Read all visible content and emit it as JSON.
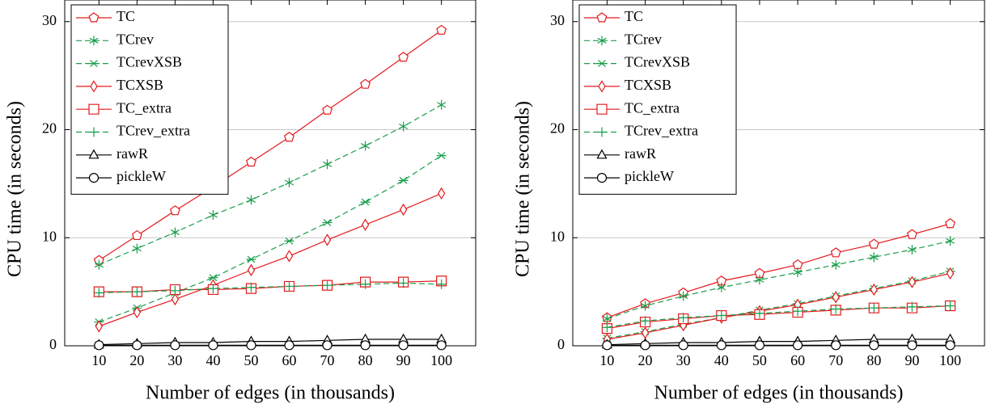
{
  "chart_data": [
    {
      "type": "line",
      "xlabel": "Number of edges (in thousands)",
      "ylabel": "CPU time (in seconds)",
      "x": [
        10,
        20,
        30,
        40,
        50,
        60,
        70,
        80,
        90,
        100
      ],
      "xlim": [
        1,
        109
      ],
      "ylim": [
        0,
        32
      ],
      "xticks": [
        10,
        20,
        30,
        40,
        50,
        60,
        70,
        80,
        90,
        100
      ],
      "yticks": [
        0,
        10,
        20,
        30
      ],
      "grid": true,
      "legend": "upper left",
      "series": [
        {
          "name": "TC",
          "color": "#e41a1c",
          "marker": "pentagon",
          "dash": false,
          "values": [
            7.9,
            10.2,
            12.5,
            14.7,
            17.0,
            19.3,
            21.8,
            24.2,
            26.7,
            29.2
          ]
        },
        {
          "name": "TCrev",
          "color": "#1b9e4b",
          "marker": "asterisk",
          "dash": true,
          "values": [
            7.5,
            9.0,
            10.5,
            12.1,
            13.5,
            15.1,
            16.8,
            18.5,
            20.3,
            22.3
          ]
        },
        {
          "name": "TCrevXSB",
          "color": "#1b9e4b",
          "marker": "star",
          "dash": true,
          "values": [
            2.2,
            3.5,
            4.9,
            6.3,
            8.0,
            9.7,
            11.4,
            13.3,
            15.3,
            17.6
          ]
        },
        {
          "name": "TCXSB",
          "color": "#e41a1c",
          "marker": "diamond",
          "dash": false,
          "values": [
            1.8,
            3.1,
            4.3,
            5.6,
            7.0,
            8.3,
            9.8,
            11.2,
            12.6,
            14.1
          ]
        },
        {
          "name": "TC_extra",
          "color": "#e41a1c",
          "marker": "square",
          "dash": false,
          "values": [
            5.0,
            5.0,
            5.2,
            5.2,
            5.3,
            5.5,
            5.6,
            5.9,
            5.9,
            6.0
          ]
        },
        {
          "name": "TCrev_extra",
          "color": "#1b9e4b",
          "marker": "plus",
          "dash": true,
          "values": [
            4.9,
            5.0,
            5.1,
            5.3,
            5.4,
            5.5,
            5.6,
            5.7,
            5.8,
            5.7
          ]
        },
        {
          "name": "rawR",
          "color": "#000000",
          "marker": "triangle",
          "dash": false,
          "values": [
            0.1,
            0.2,
            0.3,
            0.3,
            0.4,
            0.4,
            0.5,
            0.6,
            0.6,
            0.6
          ]
        },
        {
          "name": "pickleW",
          "color": "#000000",
          "marker": "circle",
          "dash": false,
          "values": [
            0.05,
            0.05,
            0.05,
            0.05,
            0.05,
            0.05,
            0.05,
            0.05,
            0.05,
            0.05
          ]
        }
      ]
    },
    {
      "type": "line",
      "xlabel": "Number of edges (in thousands)",
      "ylabel": "CPU time (in seconds)",
      "x": [
        10,
        20,
        30,
        40,
        50,
        60,
        70,
        80,
        90,
        100
      ],
      "xlim": [
        1,
        109
      ],
      "ylim": [
        0,
        32
      ],
      "xticks": [
        10,
        20,
        30,
        40,
        50,
        60,
        70,
        80,
        90,
        100
      ],
      "yticks": [
        0,
        10,
        20,
        30
      ],
      "grid": true,
      "legend": "upper left",
      "series": [
        {
          "name": "TC",
          "color": "#e41a1c",
          "marker": "pentagon",
          "dash": false,
          "values": [
            2.6,
            3.9,
            4.9,
            6.0,
            6.7,
            7.5,
            8.6,
            9.4,
            10.3,
            11.3
          ]
        },
        {
          "name": "TCrev",
          "color": "#1b9e4b",
          "marker": "asterisk",
          "dash": true,
          "values": [
            2.5,
            3.7,
            4.6,
            5.4,
            6.1,
            6.8,
            7.5,
            8.2,
            8.9,
            9.7
          ]
        },
        {
          "name": "TCrevXSB",
          "color": "#1b9e4b",
          "marker": "star",
          "dash": true,
          "values": [
            0.7,
            1.3,
            2.0,
            2.6,
            3.3,
            3.9,
            4.6,
            5.3,
            6.0,
            6.9
          ]
        },
        {
          "name": "TCXSB",
          "color": "#e41a1c",
          "marker": "diamond",
          "dash": false,
          "values": [
            0.6,
            1.2,
            1.9,
            2.6,
            3.2,
            3.8,
            4.5,
            5.2,
            5.9,
            6.7
          ]
        },
        {
          "name": "TC_extra",
          "color": "#e41a1c",
          "marker": "square",
          "dash": false,
          "values": [
            1.6,
            2.2,
            2.5,
            2.8,
            2.9,
            3.1,
            3.3,
            3.5,
            3.5,
            3.7
          ]
        },
        {
          "name": "TCrev_extra",
          "color": "#1b9e4b",
          "marker": "plus",
          "dash": true,
          "values": [
            1.7,
            2.3,
            2.6,
            2.8,
            3.0,
            3.2,
            3.4,
            3.5,
            3.6,
            3.7
          ]
        },
        {
          "name": "rawR",
          "color": "#000000",
          "marker": "triangle",
          "dash": false,
          "values": [
            0.1,
            0.2,
            0.3,
            0.3,
            0.4,
            0.4,
            0.5,
            0.6,
            0.6,
            0.6
          ]
        },
        {
          "name": "pickleW",
          "color": "#000000",
          "marker": "circle",
          "dash": false,
          "values": [
            0.05,
            0.05,
            0.05,
            0.05,
            0.05,
            0.05,
            0.05,
            0.05,
            0.05,
            0.05
          ]
        }
      ]
    }
  ]
}
